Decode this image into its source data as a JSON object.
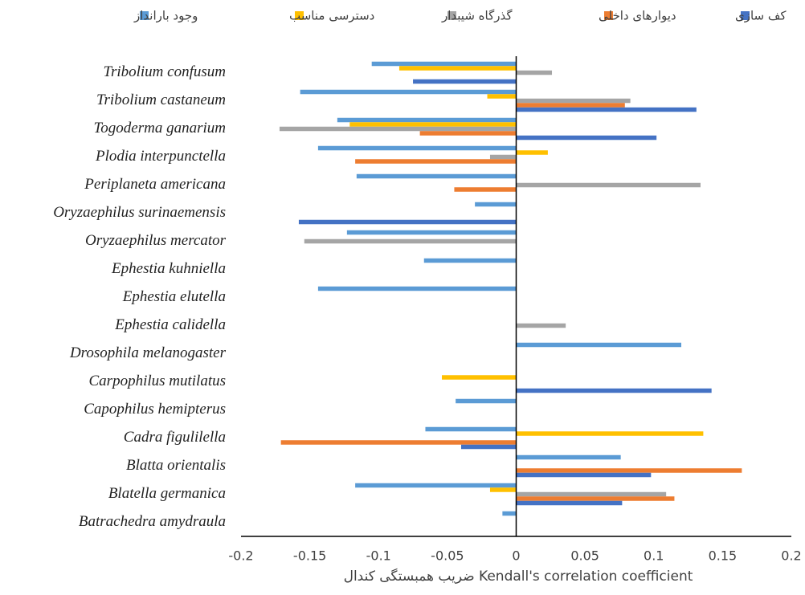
{
  "chart_data": {
    "type": "bar",
    "orientation": "horizontal",
    "x_label": "ضریب همبستگی کندال Kendall's correlation coefficient",
    "categories": [
      "Tribolium confusum",
      "Tribolium castaneum",
      "Togoderma ganarium",
      "Plodia interpunctella",
      "Periplaneta americana",
      "Oryzaephilus surinaemensis",
      "Oryzaephilus mercator",
      "Ephestia kuhniella",
      "Ephestia elutella",
      "Ephestia calidella",
      "Drosophila melanogaster",
      "Carpophilus mutilatus",
      "Capophilus hemipterus",
      "Cadra figulilella",
      "Blatta orientalis",
      "Blatella germanica",
      "Batrachedra amydraula"
    ],
    "series": [
      {
        "name": "وجود بارانداز",
        "color": "#5b9bd5",
        "values": [
          -0.105,
          -0.157,
          -0.13,
          -0.144,
          -0.116,
          -0.03,
          -0.123,
          -0.067,
          -0.144,
          null,
          0.12,
          null,
          -0.044,
          -0.066,
          0.076,
          -0.117,
          -0.01
        ]
      },
      {
        "name": "دسترسی مناسب",
        "color": "#ffc000",
        "values": [
          -0.085,
          -0.021,
          -0.121,
          0.023,
          null,
          null,
          null,
          null,
          null,
          null,
          null,
          -0.054,
          null,
          0.136,
          null,
          -0.019,
          null
        ]
      },
      {
        "name": "گذرگاه شیبدار",
        "color": "#a5a5a5",
        "values": [
          0.026,
          0.083,
          -0.172,
          -0.019,
          0.134,
          null,
          -0.154,
          null,
          null,
          0.036,
          null,
          null,
          null,
          null,
          null,
          0.109,
          null
        ]
      },
      {
        "name": "دیوارهای داخلی",
        "color": "#ed7d31",
        "values": [
          null,
          0.079,
          -0.07,
          -0.117,
          -0.045,
          null,
          null,
          null,
          null,
          null,
          null,
          null,
          null,
          -0.171,
          0.164,
          0.115,
          null
        ]
      },
      {
        "name": "کف سازی",
        "color": "#4472c4",
        "values": [
          -0.075,
          0.131,
          0.102,
          null,
          null,
          -0.158,
          null,
          null,
          null,
          null,
          null,
          0.142,
          null,
          -0.04,
          0.098,
          0.077,
          null
        ]
      }
    ],
    "xlim": [
      -0.2,
      0.2
    ],
    "xticks": [
      -0.2,
      -0.15,
      -0.1,
      -0.05,
      0,
      0.05,
      0.1,
      0.15,
      0.2
    ],
    "legend": "top"
  }
}
